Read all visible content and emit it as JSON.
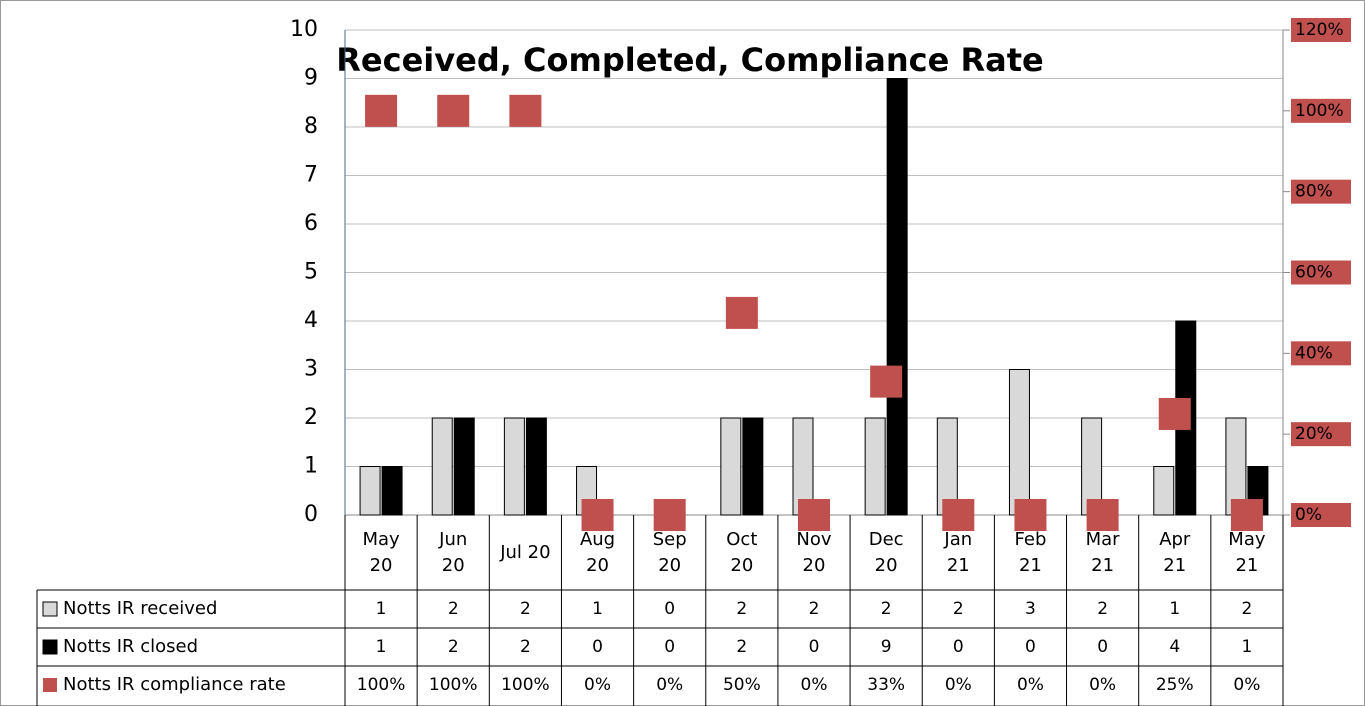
{
  "chart_data": {
    "type": "bar",
    "title": "Received, Completed, Compliance Rate",
    "categories": [
      "May 20",
      "Jun 20",
      "Jul 20",
      "Aug 20",
      "Sep 20",
      "Oct 20",
      "Nov 20",
      "Dec 20",
      "Jan 21",
      "Feb 21",
      "Mar 21",
      "Apr 21",
      "May 21"
    ],
    "series": [
      {
        "name": "Notts IR received",
        "color": "#d9d9d9",
        "values": [
          1,
          2,
          2,
          1,
          0,
          2,
          2,
          2,
          2,
          3,
          2,
          1,
          2
        ]
      },
      {
        "name": "Notts IR closed",
        "color": "#000000",
        "values": [
          1,
          2,
          2,
          0,
          0,
          2,
          0,
          9,
          0,
          0,
          0,
          4,
          1
        ]
      },
      {
        "name": "Notts IR compliance rate",
        "color": "#c0504d",
        "axis": "y2",
        "type": "scatter",
        "values": [
          100,
          100,
          100,
          0,
          0,
          50,
          0,
          33,
          0,
          0,
          0,
          25,
          0
        ],
        "value_labels": [
          "100%",
          "100%",
          "100%",
          "0%",
          "0%",
          "50%",
          "0%",
          "33%",
          "0%",
          "0%",
          "0%",
          "25%",
          "0%"
        ]
      }
    ],
    "ylim": [
      0,
      10
    ],
    "yticks": [
      0,
      1,
      2,
      3,
      4,
      5,
      6,
      7,
      8,
      9,
      10
    ],
    "y2lim": [
      0,
      120
    ],
    "y2ticks": [
      {
        "value": 0,
        "label": "0%"
      },
      {
        "value": 20,
        "label": "20%"
      },
      {
        "value": 40,
        "label": "40%"
      },
      {
        "value": 60,
        "label": "60%"
      },
      {
        "value": 80,
        "label": "80%"
      },
      {
        "value": 100,
        "label": "100%"
      },
      {
        "value": 120,
        "label": "120%"
      }
    ],
    "grid": true
  }
}
